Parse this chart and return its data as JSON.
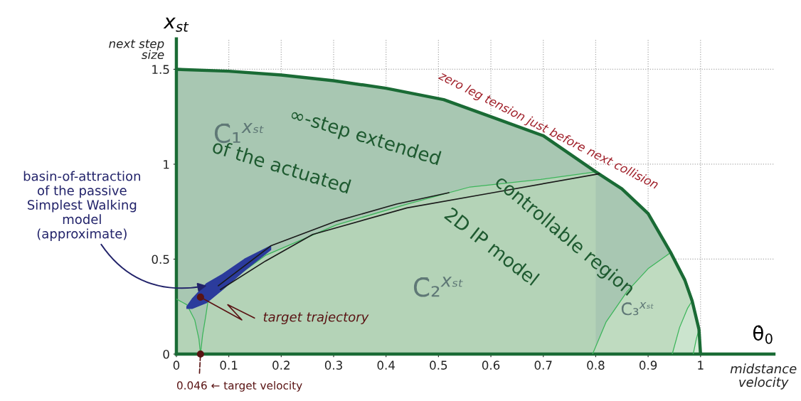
{
  "chart_data": {
    "type": "area",
    "xlabel": "θ̇$_{0}$",
    "ylabel": "x$_{st}$",
    "xlim": [
      0,
      1.14
    ],
    "ylim": [
      0,
      1.66
    ],
    "xticks": [
      0,
      0.1,
      0.2,
      0.3,
      0.4,
      0.5,
      0.6,
      0.7,
      0.8,
      0.9,
      1
    ],
    "yticks": [
      0,
      0.5,
      1,
      1.5
    ],
    "grid": true,
    "legend": false,
    "marker": "none",
    "series": [
      {
        "color": "#1a6b35",
        "x": [
          0,
          0.1,
          0.2,
          0.3,
          0.4,
          0.51,
          0.6,
          0.7,
          0.8,
          0.85,
          0.9,
          0.943,
          0.97,
          0.984,
          0.997,
          1.0
        ],
        "values": [
          1.5,
          1.49,
          1.47,
          1.44,
          1.4,
          1.34,
          1.25,
          1.15,
          0.96,
          0.87,
          0.74,
          0.535,
          0.39,
          0.28,
          0.13,
          0
        ]
      },
      {
        "color": "#3cb55a",
        "x": [
          0,
          0.02,
          0.035,
          0.043,
          0.046,
          0.05,
          0.056,
          0.061,
          0.1,
          0.17,
          0.305,
          0.44,
          0.56,
          0.695,
          0.8
        ],
        "values": [
          0.29,
          0.26,
          0.18,
          0.08,
          0,
          0.1,
          0.2,
          0.29,
          0.38,
          0.52,
          0.68,
          0.79,
          0.88,
          0.92,
          0.96
        ]
      },
      {
        "color": "#3cb55a",
        "x": [
          0.794,
          0.82,
          0.86,
          0.9,
          0.943,
          0.97,
          0.984,
          0.997,
          1.0
        ],
        "values": [
          0,
          0.17,
          0.33,
          0.45,
          0.535,
          0.39,
          0.28,
          0.13,
          0
        ]
      },
      {
        "color": "#3cb55a",
        "x": [
          0.946,
          0.96,
          0.975,
          0.984,
          0.997,
          1.0
        ],
        "values": [
          0,
          0.14,
          0.24,
          0.28,
          0.13,
          0
        ]
      },
      {
        "color": "#3cb55a",
        "x": [
          0.986,
          0.992,
          0.997,
          1.0
        ],
        "values": [
          0,
          0.08,
          0.13,
          0
        ]
      },
      {
        "type": "line",
        "color": "#1a1a1a",
        "x": [
          0.08,
          0.18,
          0.305,
          0.42,
          0.52
        ],
        "values": [
          0.36,
          0.57,
          0.7,
          0.79,
          0.85
        ]
      },
      {
        "type": "line",
        "color": "#1a1a1a",
        "x": [
          0.084,
          0.17,
          0.26,
          0.44,
          0.604,
          0.807
        ],
        "values": [
          0.34,
          0.49,
          0.63,
          0.77,
          0.85,
          0.95
        ]
      },
      {
        "type": "line",
        "color": "#2b3b9c",
        "x": [
          0.02,
          0.03,
          0.057,
          0.088,
          0.13,
          0.18
        ],
        "values": [
          null,
          null,
          null,
          null,
          null,
          null
        ],
        "lower": [
          0.24,
          0.24,
          0.27,
          0.34,
          0.44,
          0.55
        ],
        "upper": [
          0.25,
          0.29,
          0.37,
          0.42,
          0.5,
          0.57
        ]
      },
      {
        "type": "line",
        "color": "#5a1414",
        "x": [
          0.046,
          0.125,
          0.098,
          0.149
        ],
        "values": [
          0.3,
          0.18,
          0.26,
          0.19
        ]
      },
      {
        "type": "scatter",
        "marker": "circle",
        "color": "#5a1414",
        "x": [
          0.046,
          0.046
        ],
        "values": [
          0.3,
          0
        ]
      }
    ],
    "annotations": [
      "C̄₁$^{xₛₜ}$",
      "∞-step extended",
      "of the actuated",
      "2D IP model",
      "controllable region",
      "C̄₂$^{xₛₜ}$",
      "C̄₃$^{xₛₜ}$",
      "zero leg tension just before next collision",
      {
        "text": "basin-of-attraction\nof the passive\nSimplest Walking\nmodel\n(approximate)",
        "x": 0.058,
        "y": 0.36
      },
      "target trajectory",
      {
        "text": "0.046 ← target velocity",
        "x": 0.046,
        "y": 0
      },
      "next step\nsize",
      "midstance\nvelocity"
    ]
  }
}
